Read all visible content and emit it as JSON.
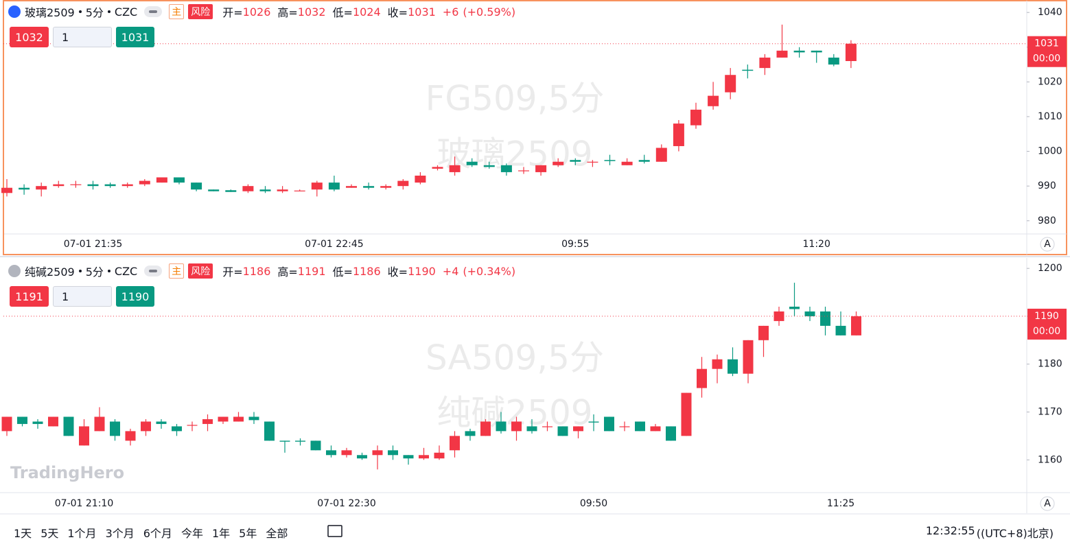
{
  "chart_data": [
    {
      "type": "candlestick",
      "header": {
        "name": "玻璃2509",
        "period": "5分",
        "exchange": "CZC",
        "main": "主",
        "risk": "风险",
        "fields": [
          {
            "label": "开=",
            "value": 1026
          },
          {
            "label": "高=",
            "value": 1032
          },
          {
            "label": "低=",
            "value": 1024
          },
          {
            "label": "收=",
            "value": 1031
          }
        ],
        "change": "+6",
        "change_pct": "(+0.59%)"
      },
      "quote": {
        "bid": 1032,
        "qty": 1,
        "ask": 1031
      },
      "watermark": [
        "FG509,5分",
        "玻璃2509"
      ],
      "last_price": 1031,
      "countdown": "00:00",
      "scale_mode": "A",
      "ylim": [
        976.2,
        1042.6
      ],
      "yticks": [
        980,
        990,
        1000,
        1010,
        1020,
        1030,
        1040
      ],
      "grid": false,
      "up_color": "#f23645",
      "down_color": "#089981",
      "xticks": [
        {
          "value": 5,
          "label": "07-01 21:35"
        },
        {
          "value": 19,
          "label": "07-01 22:45"
        },
        {
          "value": 33,
          "label": "09:55"
        },
        {
          "value": 47,
          "label": "11:20"
        }
      ],
      "open": [
        988,
        989.5,
        989,
        990,
        990.5,
        990.5,
        990.5,
        990,
        990.5,
        991,
        992.5,
        991,
        989,
        988.8,
        988.5,
        989,
        988.5,
        988.7,
        989,
        991,
        989.5,
        990,
        989.5,
        990,
        991,
        995,
        994,
        997,
        996,
        996,
        994.5,
        994,
        996,
        997.5,
        997,
        997.5,
        996,
        997.5,
        997,
        1001.5,
        1007.5,
        1013,
        1017,
        1023.5,
        1024,
        1027,
        1029,
        1029,
        1027,
        1026
      ],
      "high": [
        992,
        990.5,
        991,
        991.5,
        991.5,
        991.5,
        991,
        991,
        992,
        992.5,
        992.5,
        991,
        989,
        989,
        990.5,
        990,
        990,
        989,
        991.5,
        993,
        990.5,
        991,
        990.5,
        992,
        994,
        996,
        998.5,
        998,
        997,
        996.5,
        995.5,
        996,
        998,
        998,
        997.5,
        999,
        998,
        999,
        1002,
        1009,
        1014,
        1020,
        1024,
        1025,
        1028,
        1036.5,
        1030,
        1029,
        1028,
        1032
      ],
      "low": [
        987,
        987.5,
        987,
        989.5,
        989.5,
        989,
        989.5,
        989.5,
        990,
        991,
        990.5,
        988.5,
        988.5,
        988.3,
        988,
        988,
        988,
        988.5,
        987,
        988.5,
        989.5,
        989,
        989,
        989,
        990.5,
        994.5,
        993,
        995.5,
        995,
        993,
        993.5,
        993,
        995.5,
        996,
        995.5,
        996,
        996,
        996.5,
        997,
        1000,
        1006.5,
        1012,
        1015,
        1021,
        1022,
        1027,
        1027,
        1025.5,
        1024.5,
        1024
      ],
      "close": [
        989.5,
        989,
        990,
        990.5,
        990.5,
        990,
        990,
        990.5,
        991.5,
        992.5,
        991,
        989,
        988.5,
        988.3,
        990,
        988.5,
        989,
        988.7,
        991,
        989,
        990,
        989.5,
        990,
        991.5,
        993,
        995.5,
        996,
        996,
        995.5,
        994,
        994.5,
        996,
        997,
        997,
        997,
        997.2,
        997,
        997,
        1001,
        1008,
        1012,
        1016,
        1022,
        1023.2,
        1027,
        1029,
        1028.5,
        1028.5,
        1025,
        1031
      ]
    },
    {
      "type": "candlestick",
      "header": {
        "name": "纯碱2509",
        "period": "5分",
        "exchange": "CZC",
        "main": "主",
        "risk": "风险",
        "fields": [
          {
            "label": "开=",
            "value": 1186
          },
          {
            "label": "高=",
            "value": 1191
          },
          {
            "label": "低=",
            "value": 1186
          },
          {
            "label": "收=",
            "value": 1190
          }
        ],
        "change": "+4",
        "change_pct": "(+0.34%)"
      },
      "quote": {
        "bid": 1191,
        "qty": 1,
        "ask": 1190
      },
      "watermark": [
        "SA509,5分",
        "纯碱2509"
      ],
      "last_price": 1190,
      "countdown": "00:00",
      "scale_mode": "A",
      "ylim": [
        1153.3,
        1201.6
      ],
      "yticks": [
        1160,
        1170,
        1180,
        1190,
        1200
      ],
      "grid": false,
      "up_color": "#f23645",
      "down_color": "#089981",
      "xticks": [
        {
          "value": 5,
          "label": "07-01 21:10"
        },
        {
          "value": 22,
          "label": "07-01 22:30"
        },
        {
          "value": 38,
          "label": "09:50"
        },
        {
          "value": 54,
          "label": "11:25"
        }
      ],
      "open": [
        1166,
        1169,
        1168,
        1167,
        1169,
        1163,
        1166,
        1168,
        1164,
        1166,
        1168,
        1167,
        1167.3,
        1167.5,
        1168,
        1168,
        1169,
        1168,
        1164,
        1164,
        1164,
        1162,
        1161,
        1161,
        1161,
        1162,
        1161,
        1160.3,
        1160.3,
        1162,
        1166,
        1165,
        1168,
        1166,
        1167,
        1167,
        1167,
        1166,
        1168,
        1169,
        1167,
        1168,
        1166,
        1167,
        1165,
        1175,
        1179,
        1181,
        1178,
        1185,
        1189,
        1192,
        1191,
        1191,
        1188,
        1186
      ],
      "high": [
        1169,
        1169,
        1168.5,
        1169,
        1169,
        1168.5,
        1171,
        1168.5,
        1166.5,
        1168.5,
        1168.5,
        1167.5,
        1168,
        1169.5,
        1169,
        1170,
        1170,
        1168,
        1164,
        1164.5,
        1164,
        1163,
        1162.5,
        1161.5,
        1163,
        1163,
        1161,
        1162.5,
        1163,
        1166,
        1166.5,
        1168.5,
        1170,
        1169,
        1168.5,
        1168,
        1167,
        1167,
        1169.5,
        1169,
        1168,
        1168,
        1167.5,
        1167,
        1174,
        1181.5,
        1182,
        1183.5,
        1185,
        1188,
        1192,
        1197,
        1192,
        1192,
        1191,
        1191
      ],
      "low": [
        1165,
        1167,
        1166.5,
        1167,
        1165,
        1163,
        1166,
        1164,
        1163,
        1165,
        1166.5,
        1165,
        1166,
        1166,
        1167.5,
        1168,
        1167.5,
        1164,
        1161.5,
        1163,
        1162,
        1160.5,
        1160.5,
        1160,
        1158,
        1160,
        1159,
        1160,
        1160,
        1160.5,
        1164,
        1165,
        1165.5,
        1164,
        1165.5,
        1166,
        1165,
        1164.5,
        1166,
        1166,
        1166,
        1166,
        1166,
        1164,
        1165,
        1173,
        1176,
        1177.5,
        1176,
        1181.5,
        1188,
        1190,
        1189,
        1186,
        1186,
        1186
      ],
      "close": [
        1169,
        1167.5,
        1167.5,
        1169,
        1165,
        1167,
        1169,
        1165,
        1166,
        1168,
        1167.5,
        1166,
        1167.3,
        1168.5,
        1169,
        1169,
        1168.3,
        1164,
        1163.8,
        1163.8,
        1162,
        1161,
        1162,
        1160.3,
        1162,
        1161,
        1160.3,
        1161,
        1161.5,
        1165,
        1165,
        1168,
        1166,
        1168,
        1166,
        1167,
        1165,
        1167,
        1167.8,
        1166,
        1167,
        1166,
        1167,
        1164,
        1174,
        1179,
        1181,
        1178,
        1185,
        1188,
        1191,
        1191.5,
        1190,
        1188,
        1186,
        1190
      ]
    }
  ],
  "logo": "TradingHero",
  "toolbar": {
    "ranges": [
      "1天",
      "5天",
      "1个月",
      "3个月",
      "6个月",
      "今年",
      "1年",
      "5年",
      "全部"
    ],
    "clock": "12:32:55",
    "timezone": "((UTC+8)北京)"
  }
}
